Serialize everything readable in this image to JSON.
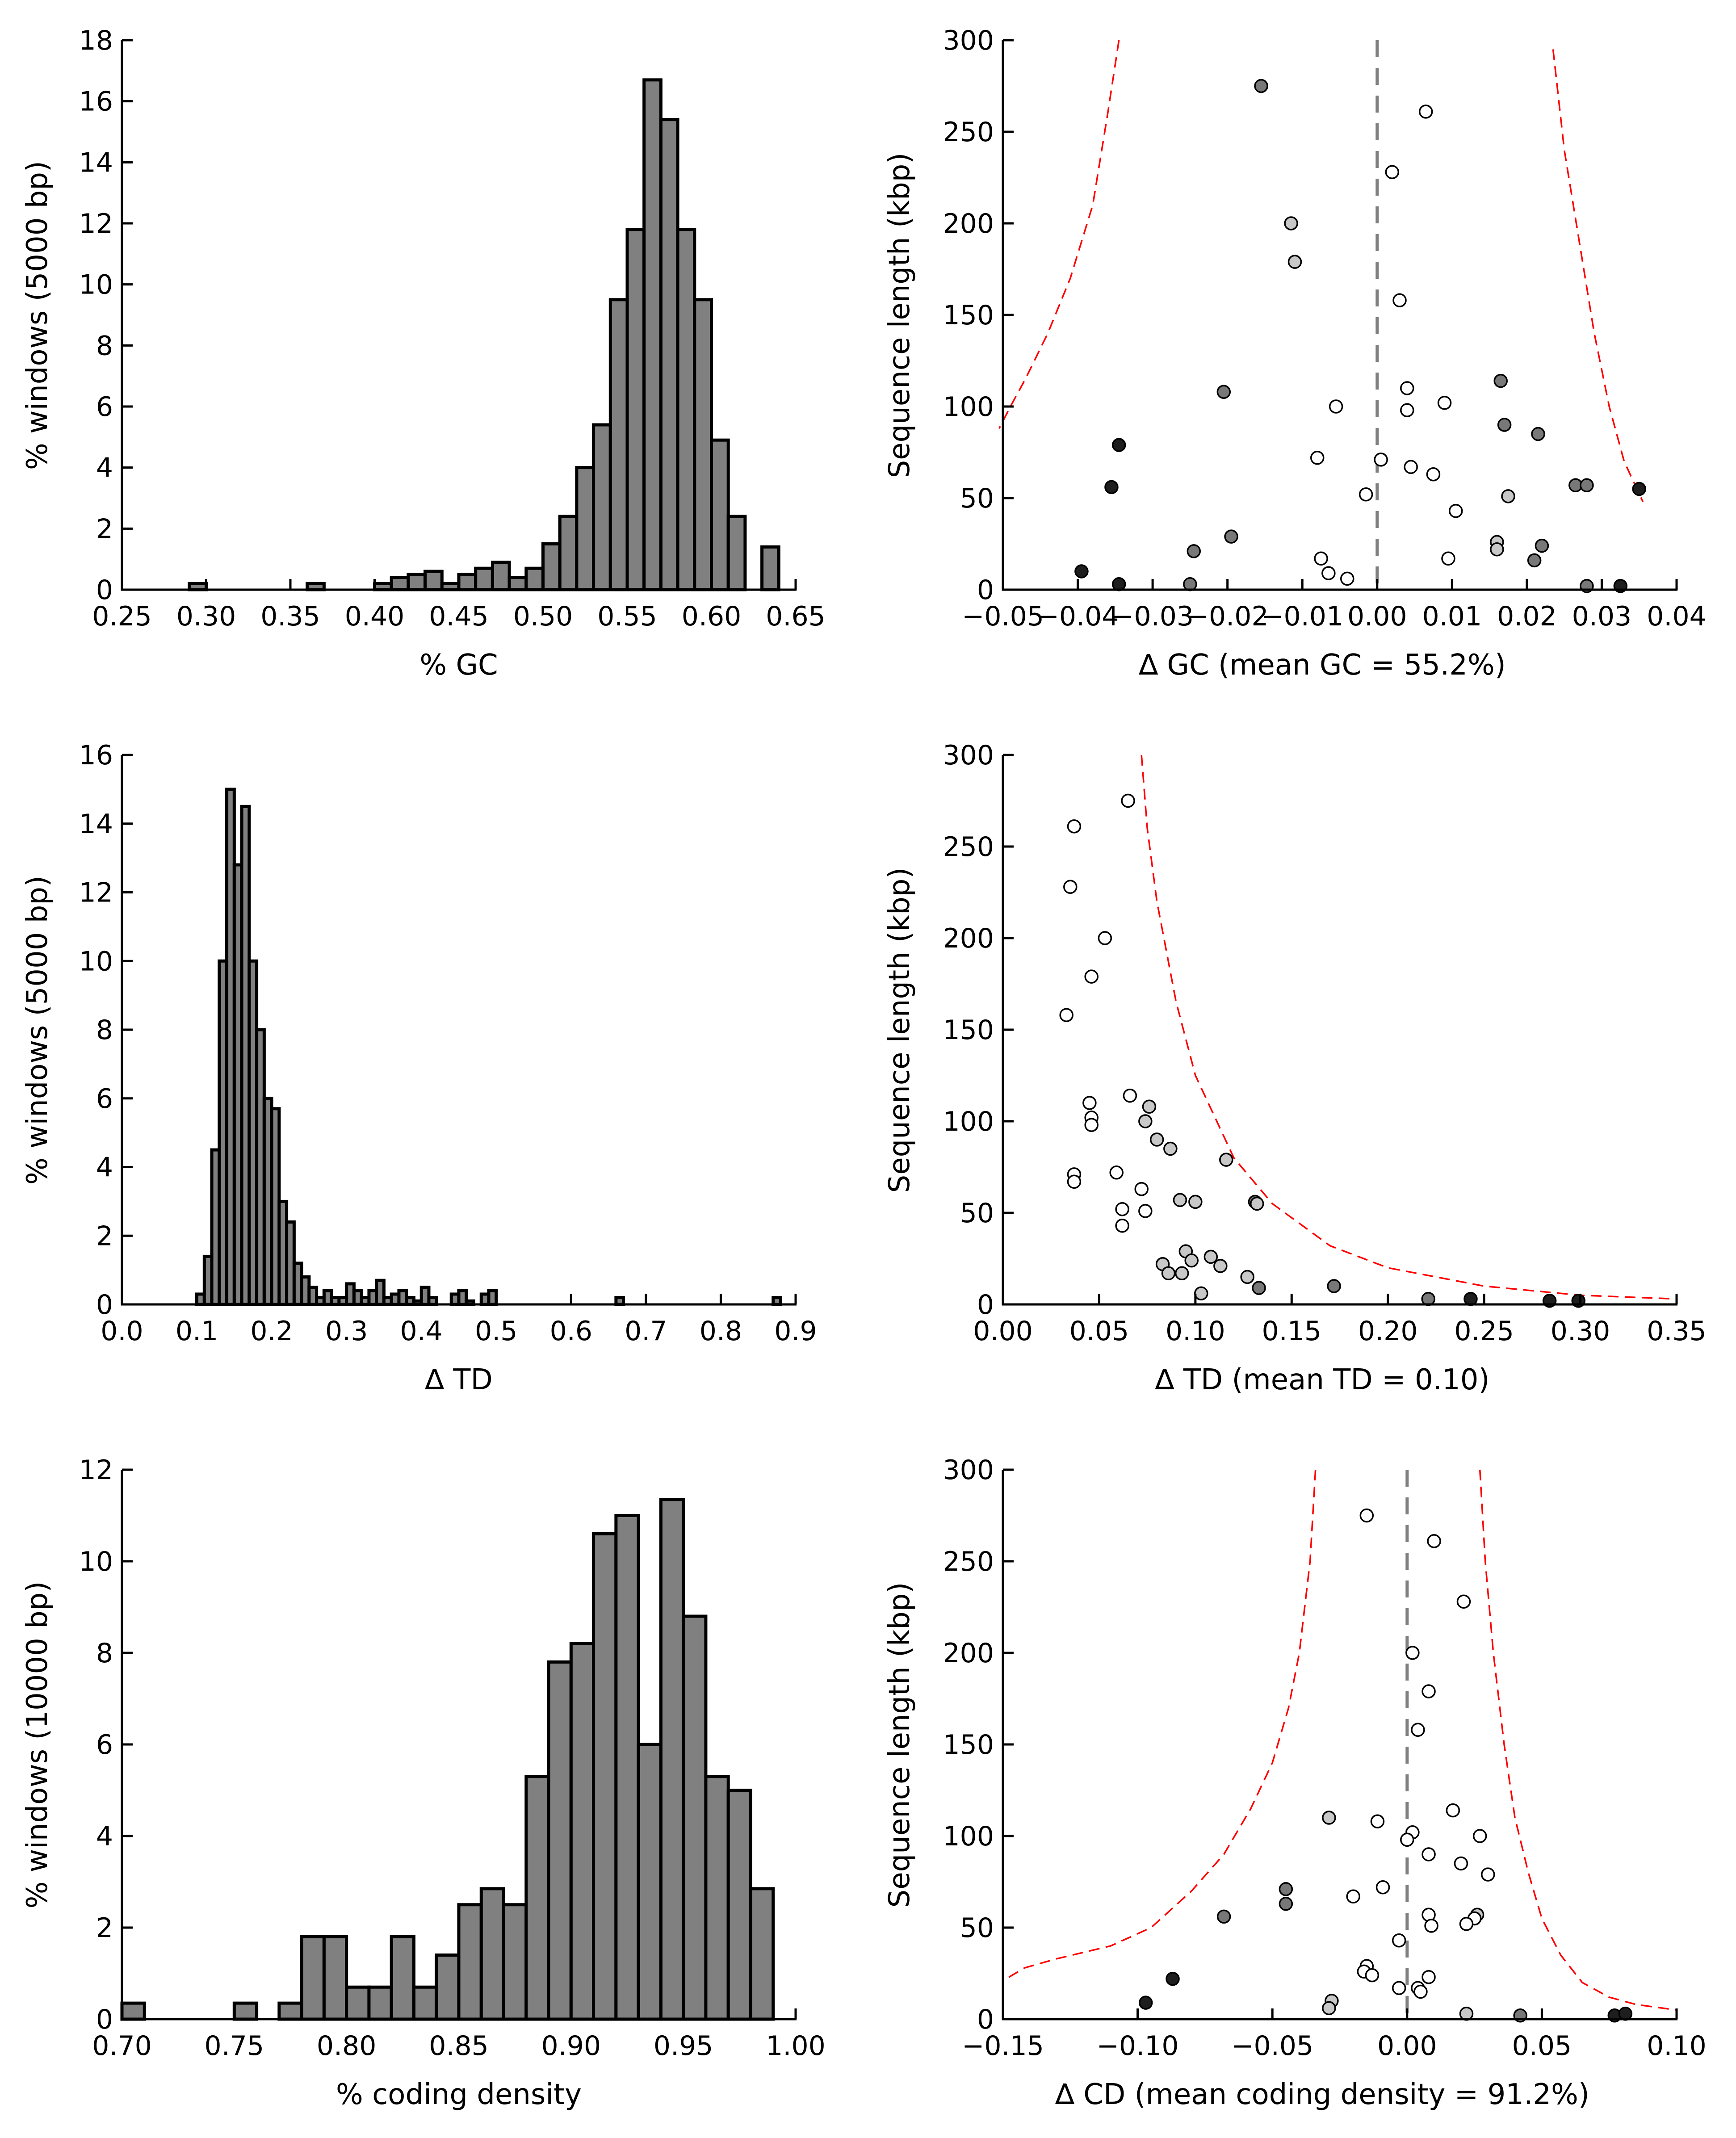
{
  "colors": {
    "bar_fill": "#808080",
    "curve": "#ff0000",
    "zero_line": "#808080",
    "point_white": "#ffffff",
    "point_light": "#c8c8c8",
    "point_mid": "#787878",
    "point_dark": "#1e1e1e"
  },
  "chart_data": [
    {
      "id": "gc_hist",
      "type": "bar",
      "xlabel": "% GC",
      "ylabel": "% windows (5000 bp)",
      "xlim": [
        0.25,
        0.65
      ],
      "ylim": [
        0,
        18
      ],
      "xticks": [
        "0.25",
        "0.30",
        "0.35",
        "0.40",
        "0.45",
        "0.50",
        "0.55",
        "0.60",
        "0.65"
      ],
      "yticks": [
        "0",
        "2",
        "4",
        "6",
        "8",
        "10",
        "12",
        "14",
        "16",
        "18"
      ],
      "bin_width": 0.01,
      "bin_starts": [
        0.29,
        0.36,
        0.4,
        0.41,
        0.42,
        0.43,
        0.44,
        0.45,
        0.46,
        0.47,
        0.48,
        0.49,
        0.5,
        0.51,
        0.52,
        0.53,
        0.54,
        0.55,
        0.56,
        0.57,
        0.58,
        0.59,
        0.6,
        0.61,
        0.63
      ],
      "values": [
        0.2,
        0.2,
        0.2,
        0.4,
        0.5,
        0.6,
        0.2,
        0.5,
        0.7,
        0.9,
        0.4,
        0.7,
        1.5,
        2.4,
        4.0,
        5.4,
        9.5,
        11.8,
        16.7,
        15.4,
        11.8,
        9.5,
        4.9,
        2.4,
        1.4
      ]
    },
    {
      "id": "gc_scatter",
      "type": "scatter",
      "xlabel": "∆ GC (mean GC = 55.2%)",
      "ylabel": "Sequence length (kbp)",
      "xlim": [
        -0.05,
        0.04
      ],
      "ylim": [
        0,
        300
      ],
      "xticks": [
        "−0.05",
        "−0.04",
        "−0.03",
        "−0.02",
        "−0.01",
        "0.00",
        "0.01",
        "0.02",
        "0.03",
        "0.04"
      ],
      "yticks": [
        "0",
        "50",
        "100",
        "150",
        "200",
        "250",
        "300"
      ],
      "points": [
        {
          "x": -0.0155,
          "y": 275,
          "s": "mid"
        },
        {
          "x": 0.0065,
          "y": 261,
          "s": "white"
        },
        {
          "x": 0.002,
          "y": 228,
          "s": "white"
        },
        {
          "x": -0.0115,
          "y": 200,
          "s": "light"
        },
        {
          "x": -0.011,
          "y": 179,
          "s": "light"
        },
        {
          "x": 0.003,
          "y": 158,
          "s": "white"
        },
        {
          "x": 0.0165,
          "y": 114,
          "s": "mid"
        },
        {
          "x": 0.004,
          "y": 110,
          "s": "white"
        },
        {
          "x": -0.0205,
          "y": 108,
          "s": "mid"
        },
        {
          "x": 0.009,
          "y": 102,
          "s": "white"
        },
        {
          "x": -0.0055,
          "y": 100,
          "s": "white"
        },
        {
          "x": 0.004,
          "y": 98,
          "s": "white"
        },
        {
          "x": 0.017,
          "y": 90,
          "s": "mid"
        },
        {
          "x": 0.0215,
          "y": 85,
          "s": "mid"
        },
        {
          "x": -0.0345,
          "y": 79,
          "s": "dark"
        },
        {
          "x": -0.008,
          "y": 72,
          "s": "white"
        },
        {
          "x": 0.0005,
          "y": 71,
          "s": "white"
        },
        {
          "x": 0.0045,
          "y": 67,
          "s": "white"
        },
        {
          "x": 0.0075,
          "y": 63,
          "s": "white"
        },
        {
          "x": 0.0265,
          "y": 57,
          "s": "mid"
        },
        {
          "x": 0.028,
          "y": 57,
          "s": "mid"
        },
        {
          "x": -0.0355,
          "y": 56,
          "s": "dark"
        },
        {
          "x": 0.035,
          "y": 55,
          "s": "dark"
        },
        {
          "x": -0.0015,
          "y": 52,
          "s": "white"
        },
        {
          "x": 0.0175,
          "y": 51,
          "s": "light"
        },
        {
          "x": 0.0105,
          "y": 43,
          "s": "white"
        },
        {
          "x": -0.0195,
          "y": 29,
          "s": "mid"
        },
        {
          "x": 0.016,
          "y": 26,
          "s": "light"
        },
        {
          "x": 0.022,
          "y": 24,
          "s": "mid"
        },
        {
          "x": 0.016,
          "y": 22,
          "s": "light"
        },
        {
          "x": -0.0245,
          "y": 21,
          "s": "mid"
        },
        {
          "x": -0.0075,
          "y": 17,
          "s": "white"
        },
        {
          "x": 0.0095,
          "y": 17,
          "s": "white"
        },
        {
          "x": 0.021,
          "y": 16,
          "s": "mid"
        },
        {
          "x": -0.0395,
          "y": 10,
          "s": "dark"
        },
        {
          "x": -0.0065,
          "y": 9,
          "s": "white"
        },
        {
          "x": -0.004,
          "y": 6,
          "s": "white"
        },
        {
          "x": -0.0345,
          "y": 3,
          "s": "dark"
        },
        {
          "x": -0.025,
          "y": 3,
          "s": "mid"
        },
        {
          "x": 0.028,
          "y": 2,
          "s": "mid"
        },
        {
          "x": 0.0325,
          "y": 2,
          "s": "dark"
        }
      ],
      "curves": [
        {
          "x": [
            -0.0345,
            -0.036,
            -0.038,
            -0.041,
            -0.044,
            -0.047,
            -0.049,
            -0.0505
          ],
          "y": [
            300,
            260,
            210,
            170,
            140,
            115,
            100,
            88
          ]
        },
        {
          "x": [
            0.0235,
            0.025,
            0.027,
            0.029,
            0.031,
            0.033,
            0.0355
          ],
          "y": [
            295,
            240,
            190,
            140,
            100,
            70,
            48
          ]
        }
      ],
      "zero_line": 0
    },
    {
      "id": "td_hist",
      "type": "bar",
      "xlabel": "∆ TD",
      "ylabel": "% windows (5000 bp)",
      "xlim": [
        0.0,
        0.9
      ],
      "ylim": [
        0,
        16
      ],
      "xticks": [
        "0.0",
        "0.1",
        "0.2",
        "0.3",
        "0.4",
        "0.5",
        "0.6",
        "0.7",
        "0.8",
        "0.9"
      ],
      "yticks": [
        "0",
        "2",
        "4",
        "6",
        "8",
        "10",
        "12",
        "14",
        "16"
      ],
      "bin_width": 0.01,
      "bin_starts": [
        0.1,
        0.11,
        0.12,
        0.13,
        0.14,
        0.15,
        0.16,
        0.17,
        0.18,
        0.19,
        0.2,
        0.21,
        0.22,
        0.23,
        0.24,
        0.25,
        0.26,
        0.27,
        0.28,
        0.29,
        0.3,
        0.31,
        0.32,
        0.33,
        0.34,
        0.35,
        0.36,
        0.37,
        0.38,
        0.39,
        0.4,
        0.41,
        0.44,
        0.45,
        0.46,
        0.48,
        0.49,
        0.66,
        0.87
      ],
      "values": [
        0.3,
        1.4,
        4.5,
        10.0,
        15.0,
        12.8,
        14.5,
        10.0,
        8.0,
        6.0,
        5.7,
        3.0,
        2.4,
        1.2,
        0.8,
        0.5,
        0.2,
        0.4,
        0.2,
        0.2,
        0.6,
        0.4,
        0.2,
        0.4,
        0.7,
        0.2,
        0.3,
        0.4,
        0.2,
        0.1,
        0.5,
        0.2,
        0.3,
        0.4,
        0.1,
        0.3,
        0.4,
        0.2,
        0.2
      ]
    },
    {
      "id": "td_scatter",
      "type": "scatter",
      "xlabel": "∆ TD (mean TD = 0.10)",
      "ylabel": "Sequence length (kbp)",
      "xlim": [
        0.0,
        0.35
      ],
      "ylim": [
        0,
        300
      ],
      "xticks": [
        "0.00",
        "0.05",
        "0.10",
        "0.15",
        "0.20",
        "0.25",
        "0.30",
        "0.35"
      ],
      "yticks": [
        "0",
        "50",
        "100",
        "150",
        "200",
        "250",
        "300"
      ],
      "points": [
        {
          "x": 0.065,
          "y": 275,
          "s": "white"
        },
        {
          "x": 0.037,
          "y": 261,
          "s": "white"
        },
        {
          "x": 0.035,
          "y": 228,
          "s": "white"
        },
        {
          "x": 0.053,
          "y": 200,
          "s": "white"
        },
        {
          "x": 0.046,
          "y": 179,
          "s": "white"
        },
        {
          "x": 0.033,
          "y": 158,
          "s": "white"
        },
        {
          "x": 0.066,
          "y": 114,
          "s": "white"
        },
        {
          "x": 0.045,
          "y": 110,
          "s": "white"
        },
        {
          "x": 0.076,
          "y": 108,
          "s": "light"
        },
        {
          "x": 0.046,
          "y": 102,
          "s": "white"
        },
        {
          "x": 0.074,
          "y": 100,
          "s": "light"
        },
        {
          "x": 0.046,
          "y": 98,
          "s": "white"
        },
        {
          "x": 0.08,
          "y": 90,
          "s": "light"
        },
        {
          "x": 0.087,
          "y": 85,
          "s": "light"
        },
        {
          "x": 0.116,
          "y": 79,
          "s": "light"
        },
        {
          "x": 0.059,
          "y": 72,
          "s": "white"
        },
        {
          "x": 0.037,
          "y": 71,
          "s": "white"
        },
        {
          "x": 0.037,
          "y": 67,
          "s": "white"
        },
        {
          "x": 0.072,
          "y": 63,
          "s": "white"
        },
        {
          "x": 0.092,
          "y": 57,
          "s": "light"
        },
        {
          "x": 0.1,
          "y": 56,
          "s": "light"
        },
        {
          "x": 0.131,
          "y": 56,
          "s": "mid"
        },
        {
          "x": 0.132,
          "y": 55,
          "s": "light"
        },
        {
          "x": 0.062,
          "y": 52,
          "s": "white"
        },
        {
          "x": 0.074,
          "y": 51,
          "s": "white"
        },
        {
          "x": 0.062,
          "y": 43,
          "s": "white"
        },
        {
          "x": 0.095,
          "y": 29,
          "s": "light"
        },
        {
          "x": 0.108,
          "y": 26,
          "s": "light"
        },
        {
          "x": 0.098,
          "y": 24,
          "s": "light"
        },
        {
          "x": 0.083,
          "y": 22,
          "s": "light"
        },
        {
          "x": 0.113,
          "y": 21,
          "s": "light"
        },
        {
          "x": 0.086,
          "y": 17,
          "s": "light"
        },
        {
          "x": 0.093,
          "y": 17,
          "s": "light"
        },
        {
          "x": 0.127,
          "y": 15,
          "s": "light"
        },
        {
          "x": 0.172,
          "y": 10,
          "s": "mid"
        },
        {
          "x": 0.133,
          "y": 9,
          "s": "mid"
        },
        {
          "x": 0.103,
          "y": 6,
          "s": "light"
        },
        {
          "x": 0.221,
          "y": 3,
          "s": "mid"
        },
        {
          "x": 0.243,
          "y": 3,
          "s": "dark"
        },
        {
          "x": 0.284,
          "y": 2,
          "s": "dark"
        },
        {
          "x": 0.299,
          "y": 2,
          "s": "dark"
        }
      ],
      "curves": [
        {
          "x": [
            0.072,
            0.075,
            0.08,
            0.09,
            0.1,
            0.12,
            0.14,
            0.17,
            0.2,
            0.25,
            0.3,
            0.35
          ],
          "y": [
            300,
            260,
            220,
            165,
            125,
            80,
            55,
            32,
            20,
            10,
            5,
            3
          ]
        }
      ]
    },
    {
      "id": "cd_hist",
      "type": "bar",
      "xlabel": "% coding density",
      "ylabel": "% windows (10000 bp)",
      "xlim": [
        0.7,
        1.0
      ],
      "ylim": [
        0,
        12
      ],
      "xticks": [
        "0.70",
        "0.75",
        "0.80",
        "0.85",
        "0.90",
        "0.95",
        "1.00"
      ],
      "yticks": [
        "0",
        "2",
        "4",
        "6",
        "8",
        "10",
        "12"
      ],
      "bin_width": 0.01,
      "bin_starts": [
        0.7,
        0.75,
        0.77,
        0.78,
        0.79,
        0.8,
        0.81,
        0.82,
        0.83,
        0.84,
        0.85,
        0.86,
        0.87,
        0.88,
        0.89,
        0.9,
        0.91,
        0.92,
        0.93,
        0.94,
        0.95,
        0.96,
        0.97,
        0.98
      ],
      "values": [
        0.35,
        0.35,
        0.35,
        1.8,
        1.8,
        0.7,
        0.7,
        1.8,
        0.7,
        1.4,
        2.5,
        2.85,
        2.5,
        5.3,
        7.8,
        8.2,
        10.6,
        11.0,
        6.0,
        11.35,
        8.8,
        5.3,
        5.0,
        2.85
      ]
    },
    {
      "id": "cd_scatter",
      "type": "scatter",
      "xlabel": "∆ CD (mean coding density = 91.2%)",
      "ylabel": "Sequence length (kbp)",
      "xlim": [
        -0.15,
        0.1
      ],
      "ylim": [
        0,
        300
      ],
      "xticks": [
        "−0.15",
        "−0.10",
        "−0.05",
        "0.00",
        "0.05",
        "0.10"
      ],
      "yticks": [
        "0",
        "50",
        "100",
        "150",
        "200",
        "250",
        "300"
      ],
      "points": [
        {
          "x": -0.015,
          "y": 275,
          "s": "white"
        },
        {
          "x": 0.01,
          "y": 261,
          "s": "white"
        },
        {
          "x": 0.021,
          "y": 228,
          "s": "white"
        },
        {
          "x": 0.002,
          "y": 200,
          "s": "white"
        },
        {
          "x": 0.008,
          "y": 179,
          "s": "white"
        },
        {
          "x": 0.004,
          "y": 158,
          "s": "white"
        },
        {
          "x": 0.017,
          "y": 114,
          "s": "white"
        },
        {
          "x": -0.029,
          "y": 110,
          "s": "light"
        },
        {
          "x": -0.011,
          "y": 108,
          "s": "white"
        },
        {
          "x": 0.002,
          "y": 102,
          "s": "white"
        },
        {
          "x": 0.027,
          "y": 100,
          "s": "white"
        },
        {
          "x": 0.0,
          "y": 98,
          "s": "white"
        },
        {
          "x": 0.008,
          "y": 90,
          "s": "white"
        },
        {
          "x": 0.02,
          "y": 85,
          "s": "white"
        },
        {
          "x": 0.03,
          "y": 79,
          "s": "white"
        },
        {
          "x": -0.009,
          "y": 72,
          "s": "white"
        },
        {
          "x": -0.045,
          "y": 71,
          "s": "mid"
        },
        {
          "x": -0.02,
          "y": 67,
          "s": "white"
        },
        {
          "x": -0.045,
          "y": 63,
          "s": "mid"
        },
        {
          "x": 0.008,
          "y": 57,
          "s": "white"
        },
        {
          "x": -0.068,
          "y": 56,
          "s": "mid"
        },
        {
          "x": 0.026,
          "y": 57,
          "s": "light"
        },
        {
          "x": 0.025,
          "y": 55,
          "s": "white"
        },
        {
          "x": 0.022,
          "y": 52,
          "s": "white"
        },
        {
          "x": 0.009,
          "y": 51,
          "s": "white"
        },
        {
          "x": -0.003,
          "y": 43,
          "s": "white"
        },
        {
          "x": -0.015,
          "y": 29,
          "s": "white"
        },
        {
          "x": -0.016,
          "y": 26,
          "s": "white"
        },
        {
          "x": -0.013,
          "y": 24,
          "s": "white"
        },
        {
          "x": 0.008,
          "y": 23,
          "s": "white"
        },
        {
          "x": -0.087,
          "y": 22,
          "s": "dark"
        },
        {
          "x": 0.004,
          "y": 17,
          "s": "white"
        },
        {
          "x": -0.003,
          "y": 17,
          "s": "white"
        },
        {
          "x": 0.005,
          "y": 15,
          "s": "white"
        },
        {
          "x": -0.028,
          "y": 10,
          "s": "light"
        },
        {
          "x": -0.097,
          "y": 9,
          "s": "dark"
        },
        {
          "x": -0.029,
          "y": 6,
          "s": "light"
        },
        {
          "x": 0.022,
          "y": 3,
          "s": "light"
        },
        {
          "x": 0.042,
          "y": 2,
          "s": "mid"
        },
        {
          "x": 0.077,
          "y": 2,
          "s": "dark"
        },
        {
          "x": 0.081,
          "y": 3,
          "s": "dark"
        }
      ],
      "curves": [
        {
          "x": [
            -0.034,
            -0.036,
            -0.04,
            -0.044,
            -0.05,
            -0.058,
            -0.068,
            -0.08,
            -0.095,
            -0.11,
            -0.13,
            -0.142,
            -0.15
          ],
          "y": [
            300,
            250,
            200,
            170,
            140,
            115,
            90,
            70,
            50,
            40,
            33,
            28,
            21
          ]
        },
        {
          "x": [
            0.027,
            0.029,
            0.032,
            0.036,
            0.04,
            0.045,
            0.05,
            0.057,
            0.065,
            0.075,
            0.085,
            0.1
          ],
          "y": [
            300,
            250,
            200,
            150,
            110,
            80,
            55,
            35,
            20,
            12,
            8,
            5
          ]
        }
      ],
      "zero_line": 0
    }
  ]
}
